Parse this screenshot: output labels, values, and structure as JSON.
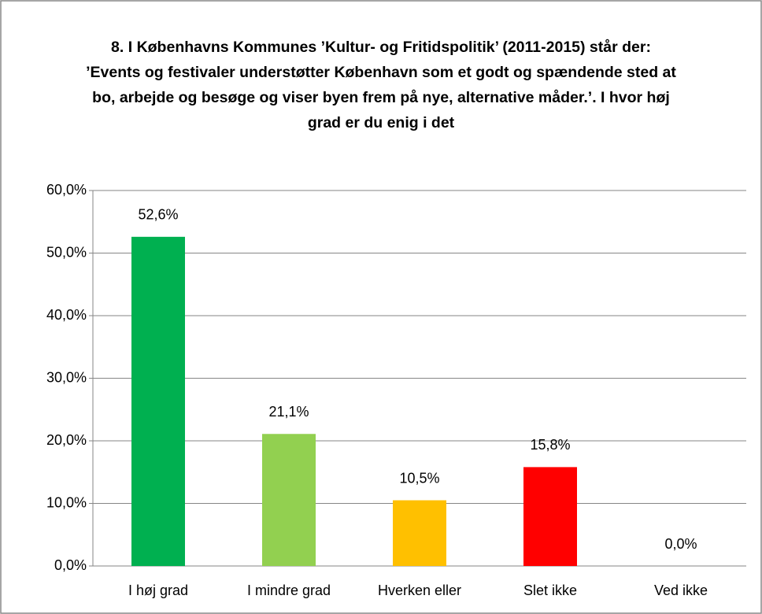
{
  "chart_data": {
    "type": "bar",
    "title": "8. I Københavns Kommunes ’Kultur- og Fritidspolitik’ (2011-2015) står der: ’Events og festivaler understøtter København som et godt og spændende sted at bo, arbejde og besøge og viser byen frem på nye, alternative måder.’. I hvor høj grad er du enig i det",
    "categories": [
      "I høj grad",
      "I mindre grad",
      "Hverken eller",
      "Slet ikke",
      "Ved ikke"
    ],
    "values": [
      52.6,
      21.1,
      10.5,
      15.8,
      0
    ],
    "value_labels": [
      "52,6%",
      "21,1%",
      "10,5%",
      "15,8%",
      "0,0%"
    ],
    "colors": [
      "#00b050",
      "#92d050",
      "#ffc000",
      "#ff0000"
    ],
    "ylim": [
      0,
      60
    ],
    "yticks": [
      {
        "value": 0,
        "label": "0,0%"
      },
      {
        "value": 10,
        "label": "10,0%"
      },
      {
        "value": 20,
        "label": "20,0%"
      },
      {
        "value": 30,
        "label": "30,0%"
      },
      {
        "value": 40,
        "label": "40,0%"
      },
      {
        "value": 50,
        "label": "50,0%"
      },
      {
        "value": 60,
        "label": "60,0%"
      }
    ],
    "grid": true
  }
}
